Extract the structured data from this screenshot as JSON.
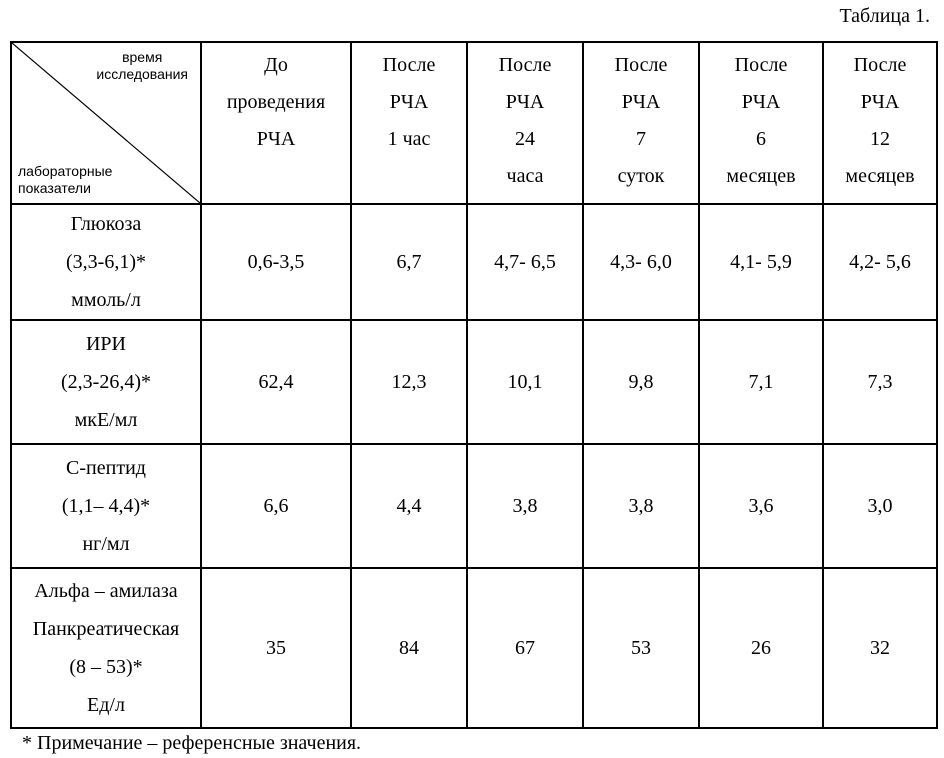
{
  "caption": "Таблица 1.",
  "corner": {
    "top_lines": [
      "время",
      "исследования"
    ],
    "bottom_lines": [
      "лабораторные",
      "показатели"
    ]
  },
  "columns": [
    {
      "lines": [
        "До",
        "проведения",
        "РЧА"
      ]
    },
    {
      "lines": [
        "После",
        "РЧА",
        "1 час"
      ]
    },
    {
      "lines": [
        "После",
        "РЧА",
        "24",
        "часа"
      ]
    },
    {
      "lines": [
        "После",
        "РЧА",
        "7",
        "суток"
      ]
    },
    {
      "lines": [
        "После",
        "РЧА",
        "6",
        "месяцев"
      ]
    },
    {
      "lines": [
        "После",
        "РЧА",
        "12",
        "месяцев"
      ]
    }
  ],
  "rows": [
    {
      "label": [
        "Глюкоза",
        "(3,3-6,1)*",
        "ммоль/л"
      ],
      "values": [
        "0,6-3,5",
        "6,7",
        "4,7- 6,5",
        "4,3- 6,0",
        "4,1- 5,9",
        "4,2- 5,6"
      ]
    },
    {
      "label": [
        "ИРИ",
        "(2,3-26,4)*",
        "мкЕ/мл"
      ],
      "values": [
        "62,4",
        "12,3",
        "10,1",
        "9,8",
        "7,1",
        "7,3"
      ]
    },
    {
      "label": [
        "С-пептид",
        "(1,1– 4,4)*",
        "нг/мл"
      ],
      "values": [
        "6,6",
        "4,4",
        "3,8",
        "3,8",
        "3,6",
        "3,0"
      ]
    },
    {
      "label": [
        "Альфа – амилаза",
        "Панкреатическая",
        "(8 – 53)*",
        "Ед/л"
      ],
      "values": [
        "35",
        "84",
        "67",
        "53",
        "26",
        "32"
      ]
    }
  ],
  "note": "* Примечание – референсные значения."
}
